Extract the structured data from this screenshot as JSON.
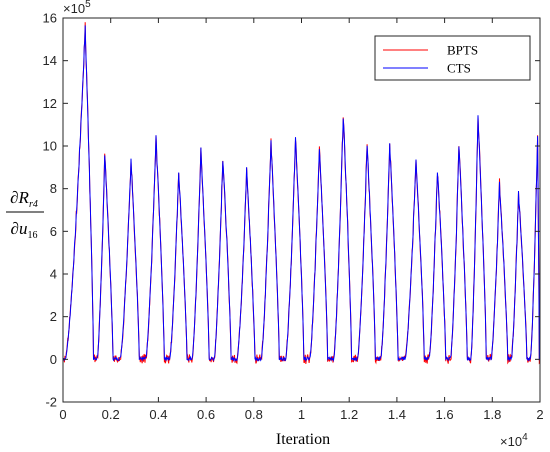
{
  "chart_data": {
    "type": "line",
    "title": "",
    "xlabel": "Iteration",
    "ylabel": {
      "numerator_symbol": "∂R",
      "numerator_sub": "r4",
      "denominator_symbol": "∂u",
      "denominator_sub": "16"
    },
    "x_multiplier": "×10^4",
    "y_multiplier": "×10^5",
    "xlim": [
      0,
      2
    ],
    "ylim": [
      -2,
      16
    ],
    "xticks": [
      "0",
      "0.2",
      "0.4",
      "0.6",
      "0.8",
      "1",
      "1.2",
      "1.4",
      "1.6",
      "1.8",
      "2"
    ],
    "yticks": [
      "-2",
      "0",
      "2",
      "4",
      "6",
      "8",
      "10",
      "12",
      "14",
      "16"
    ],
    "grid": false,
    "legend_position": "top-right",
    "series": [
      {
        "name": "BPTS",
        "color": "#ff0000"
      },
      {
        "name": "CTS",
        "color": "#0000ff"
      }
    ],
    "peaks": [
      {
        "x": 0.093,
        "y": 15.5
      },
      {
        "x": 0.175,
        "y": 9.6
      },
      {
        "x": 0.285,
        "y": 9.3
      },
      {
        "x": 0.39,
        "y": 10.35
      },
      {
        "x": 0.485,
        "y": 8.8
      },
      {
        "x": 0.578,
        "y": 9.8
      },
      {
        "x": 0.67,
        "y": 9.45
      },
      {
        "x": 0.77,
        "y": 8.85
      },
      {
        "x": 0.872,
        "y": 10.15
      },
      {
        "x": 0.975,
        "y": 10.35
      },
      {
        "x": 1.075,
        "y": 9.95
      },
      {
        "x": 1.175,
        "y": 11.45
      },
      {
        "x": 1.275,
        "y": 10.05
      },
      {
        "x": 1.37,
        "y": 10.05
      },
      {
        "x": 1.48,
        "y": 9.35
      },
      {
        "x": 1.57,
        "y": 8.9
      },
      {
        "x": 1.66,
        "y": 9.95
      },
      {
        "x": 1.74,
        "y": 11.3
      },
      {
        "x": 1.83,
        "y": 8.2
      },
      {
        "x": 1.91,
        "y": 7.8
      },
      {
        "x": 1.99,
        "y": 10.6
      }
    ]
  }
}
